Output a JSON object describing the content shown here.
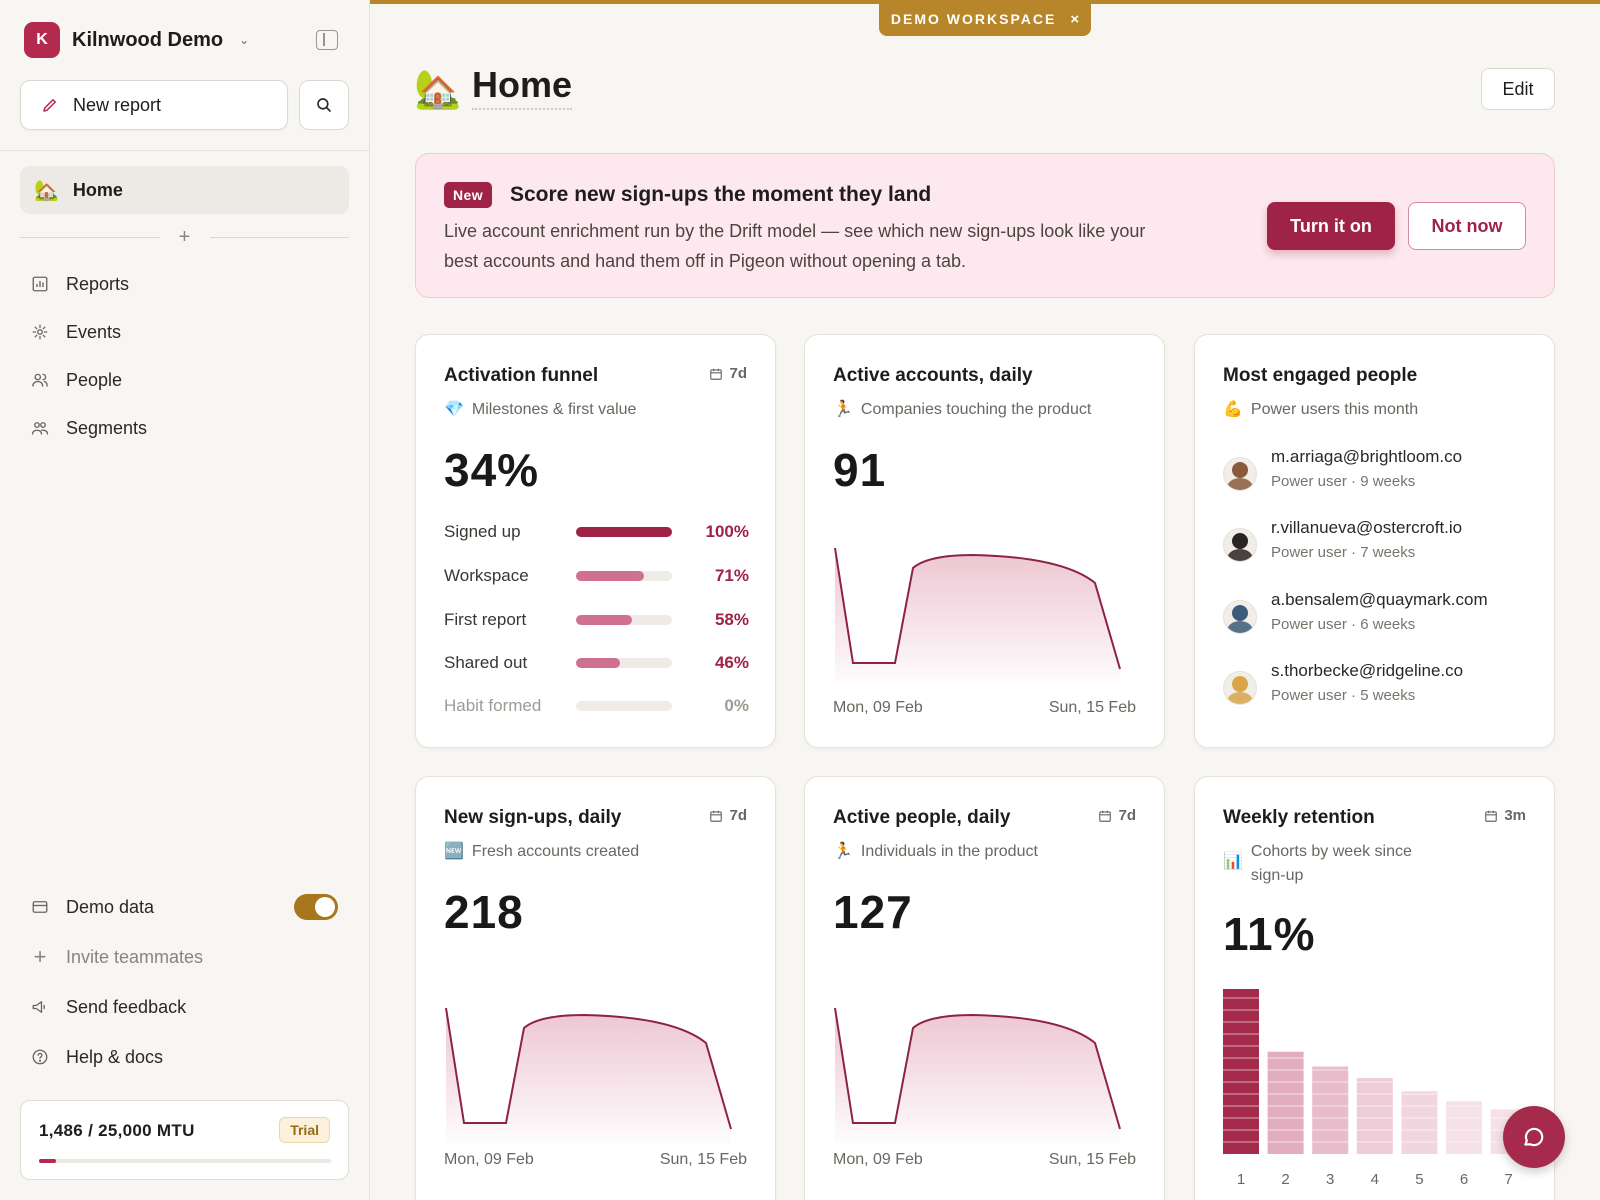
{
  "workspace": {
    "initial": "K",
    "name": "Kilnwood Demo"
  },
  "sidebar": {
    "new_report": "New report",
    "home": "Home",
    "items": [
      {
        "label": "Reports",
        "icon": "bar-chart-icon"
      },
      {
        "label": "Events",
        "icon": "sparkle-icon"
      },
      {
        "label": "People",
        "icon": "people-icon"
      },
      {
        "label": "Segments",
        "icon": "segments-icon"
      }
    ],
    "bottom": {
      "demo_data": "Demo data",
      "demo_data_on": true,
      "invite": "Invite teammates",
      "feedback": "Send feedback",
      "help": "Help & docs"
    },
    "mtu": {
      "text": "1,486 / 25,000 MTU",
      "badge": "Trial",
      "used": 1486,
      "limit": 25000
    }
  },
  "demo_banner": {
    "label": "DEMO WORKSPACE",
    "close": "×"
  },
  "page": {
    "icon": "🏡",
    "title": "Home",
    "edit": "Edit"
  },
  "promo": {
    "badge": "New",
    "title": "Score new sign-ups the moment they land",
    "description": "Live account enrichment run by the Drift model — see which new sign-ups look like your best accounts and hand them off in Pigeon without opening a tab.",
    "primary": "Turn it on",
    "secondary": "Not now"
  },
  "cards": {
    "funnel": {
      "title": "Activation funnel",
      "range": "7d",
      "sub_icon": "💎",
      "subtitle": "Milestones & first value",
      "value": "34%",
      "steps": [
        {
          "label": "Signed up",
          "pct": "100%",
          "value": 100
        },
        {
          "label": "Workspace",
          "pct": "71%",
          "value": 71
        },
        {
          "label": "First report",
          "pct": "58%",
          "value": 58
        },
        {
          "label": "Shared out",
          "pct": "46%",
          "value": 46
        },
        {
          "label": "Habit formed",
          "pct": "0%",
          "value": 0
        }
      ]
    },
    "active_accounts": {
      "title": "Active accounts, daily",
      "sub_icon": "🏃",
      "subtitle": "Companies touching the product",
      "value": "91",
      "date_start": "Mon, 09 Feb",
      "date_end": "Sun, 15 Feb"
    },
    "engaged": {
      "title": "Most engaged people",
      "sub_icon": "💪",
      "subtitle": "Power users this month",
      "people": [
        {
          "email": "m.arriaga@brightloom.co",
          "meta": "Power user · 9 weeks",
          "color": "#8a5a3c"
        },
        {
          "email": "r.villanueva@ostercroft.io",
          "meta": "Power user · 7 weeks",
          "color": "#2a2523"
        },
        {
          "email": "a.bensalem@quaymark.com",
          "meta": "Power user · 6 weeks",
          "color": "#3c5a7a"
        },
        {
          "email": "s.thorbecke@ridgeline.co",
          "meta": "Power user · 5 weeks",
          "color": "#d8a548"
        }
      ]
    },
    "signups": {
      "title": "New sign-ups, daily",
      "range": "7d",
      "sub_icon": "🆕",
      "subtitle": "Fresh accounts created",
      "value": "218",
      "date_start": "Mon, 09 Feb",
      "date_end": "Sun, 15 Feb"
    },
    "active_people": {
      "title": "Active people, daily",
      "range": "7d",
      "sub_icon": "🏃",
      "subtitle": "Individuals in the product",
      "value": "127",
      "date_start": "Mon, 09 Feb",
      "date_end": "Sun, 15 Feb"
    },
    "retention": {
      "title": "Weekly retention",
      "range": "3m",
      "sub_icon": "📊",
      "subtitle": "Cohorts by week since sign-up",
      "value": "11%",
      "weeks": [
        "1",
        "2",
        "3",
        "4",
        "5",
        "6",
        "7"
      ]
    }
  },
  "chart_data": [
    {
      "type": "bar",
      "title": "Weekly retention",
      "categories": [
        "1",
        "2",
        "3",
        "4",
        "5",
        "6",
        "7"
      ],
      "values": [
        100,
        62,
        53,
        46,
        38,
        32,
        27
      ],
      "colors": [
        "#a52a4c",
        "#e2aebf",
        "#e8bccb",
        "#efcdd8",
        "#f2d6df",
        "#f6e1e8",
        "#f6e1e8"
      ]
    }
  ],
  "colors": {
    "accent": "#9e2346",
    "demo": "#b8862a"
  }
}
